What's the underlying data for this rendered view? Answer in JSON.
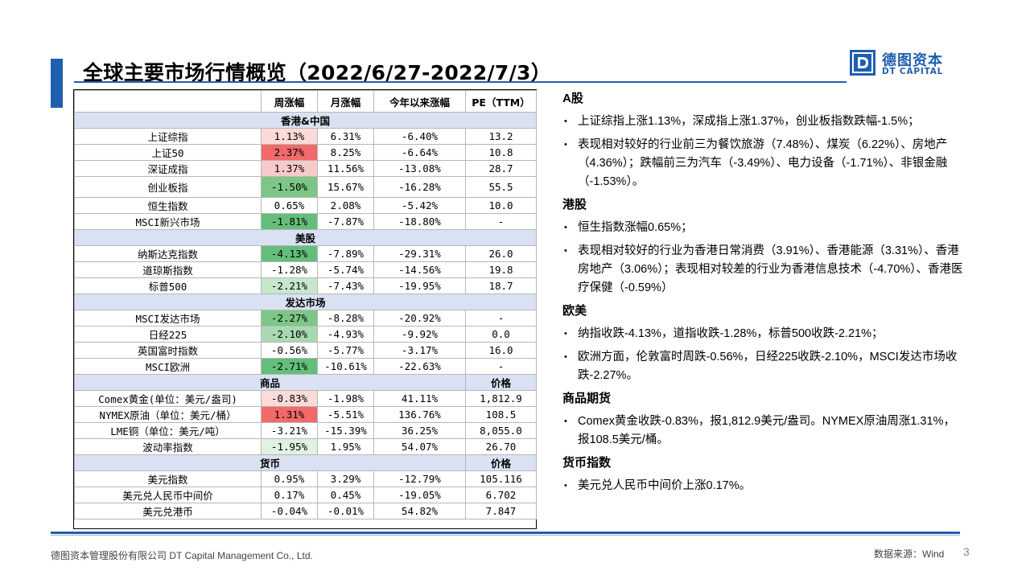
{
  "header": {
    "title": "全球主要市场行情概览（2022/6/27-2022/7/3）",
    "accent_color": "#1f5fae"
  },
  "logo": {
    "cn": "德图资本",
    "en": "DT CAPITAL",
    "mark": "D"
  },
  "table": {
    "columns": [
      "",
      "周涨幅",
      "月涨幅",
      "今年以来涨幅",
      "PE（TTM）"
    ],
    "sections": [
      {
        "type": "section",
        "title": "香港&中国"
      },
      {
        "type": "row",
        "name": "上证综指",
        "week": "1.13%",
        "month": "6.31%",
        "ytd": "-6.40%",
        "pe": "13.2",
        "week_color": "#fadbd8"
      },
      {
        "type": "row",
        "name": "上证50",
        "week": "2.37%",
        "month": "8.25%",
        "ytd": "-6.64%",
        "pe": "10.8",
        "week_color": "#f2696a"
      },
      {
        "type": "row",
        "name": "深证成指",
        "week": "1.37%",
        "month": "11.56%",
        "ytd": "-13.08%",
        "pe": "28.7",
        "week_color": "#f8c9c9"
      },
      {
        "type": "row",
        "name": "创业板指",
        "week": "-1.50%",
        "month": "15.67%",
        "ytd": "-16.28%",
        "pe": "55.5",
        "week_color": "#7cc786",
        "tall": true
      },
      {
        "type": "row",
        "name": "恒生指数",
        "week": "0.65%",
        "month": "2.08%",
        "ytd": "-5.42%",
        "pe": "10.0",
        "week_color": "#ffffff"
      },
      {
        "type": "row",
        "name": "MSCI新兴市场",
        "week": "-1.81%",
        "month": "-7.87%",
        "ytd": "-18.80%",
        "pe": "-",
        "week_color": "#63be7b"
      },
      {
        "type": "section",
        "title": "美股"
      },
      {
        "type": "row",
        "name": "纳斯达克指数",
        "week": "-4.13%",
        "month": "-7.89%",
        "ytd": "-29.31%",
        "pe": "26.0",
        "week_color": "#63be7b"
      },
      {
        "type": "row",
        "name": "道琼斯指数",
        "week": "-1.28%",
        "month": "-5.74%",
        "ytd": "-14.56%",
        "pe": "19.8",
        "week_color": "#ffffff"
      },
      {
        "type": "row",
        "name": "标普500",
        "week": "-2.21%",
        "month": "-7.43%",
        "ytd": "-19.95%",
        "pe": "18.7",
        "week_color": "#c6e7cc"
      },
      {
        "type": "section",
        "title": "发达市场"
      },
      {
        "type": "row",
        "name": "MSCI发达市场",
        "week": "-2.27%",
        "month": "-8.28%",
        "ytd": "-20.92%",
        "pe": "-",
        "week_color": "#7cc786"
      },
      {
        "type": "row",
        "name": "日经225",
        "week": "-2.10%",
        "month": "-4.93%",
        "ytd": "-9.92%",
        "pe": "0.0",
        "week_color": "#a8d9b0"
      },
      {
        "type": "row",
        "name": "英国富时指数",
        "week": "-0.56%",
        "month": "-5.77%",
        "ytd": "-3.17%",
        "pe": "16.0",
        "week_color": "#ffffff"
      },
      {
        "type": "row",
        "name": "MSCI欧洲",
        "week": "-2.71%",
        "month": "-10.61%",
        "ytd": "-22.63%",
        "pe": "-",
        "week_color": "#63be7b"
      },
      {
        "type": "section",
        "title": "商品",
        "right_label": "价格"
      },
      {
        "type": "row",
        "name": "Comex黄金(单位：美元/盎司)",
        "week": "-0.83%",
        "month": "-1.98%",
        "ytd": "41.11%",
        "pe": "1,812.9",
        "week_color": "#fadbd8"
      },
      {
        "type": "row",
        "name": "NYMEX原油（单位：美元/桶）",
        "week": "1.31%",
        "month": "-5.51%",
        "ytd": "136.76%",
        "pe": "108.5",
        "week_color": "#f2696a"
      },
      {
        "type": "row",
        "name": "LME铜（单位：美元/吨）",
        "week": "-3.21%",
        "month": "-15.39%",
        "ytd": "36.25%",
        "pe": "8,055.0",
        "week_color": "#ffffff"
      },
      {
        "type": "row",
        "name": "波动率指数",
        "week": "-1.95%",
        "month": "1.95%",
        "ytd": "54.07%",
        "pe": "26.70",
        "week_color": "#dff1e2"
      },
      {
        "type": "section",
        "title": "货币",
        "right_label": "价格"
      },
      {
        "type": "row",
        "name": "美元指数",
        "week": "0.95%",
        "month": "3.29%",
        "ytd": "-12.79%",
        "pe": "105.116",
        "week_color": "#ffffff"
      },
      {
        "type": "row",
        "name": "美元兑人民币中间价",
        "week": "0.17%",
        "month": "0.45%",
        "ytd": "-19.05%",
        "pe": "6.702",
        "week_color": "#ffffff"
      },
      {
        "type": "row",
        "name": "美元兑港币",
        "week": "-0.04%",
        "month": "-0.01%",
        "ytd": "54.82%",
        "pe": "7.847",
        "week_color": "#ffffff"
      }
    ]
  },
  "notes": [
    {
      "head": "A股",
      "bullets": [
        "上证综指上涨1.13%，深成指上涨1.37%，创业板指数跌幅-1.5%；",
        "表现相对较好的行业前三为餐饮旅游（7.48%）、煤炭（6.22%）、房地产（4.36%）；跌幅前三为汽车（-3.49%）、电力设备（-1.71%）、非银金融（-1.53%）。"
      ]
    },
    {
      "head": "港股",
      "bullets": [
        "恒生指数涨幅0.65%；",
        "表现相对较好的行业为香港日常消费（3.91%）、香港能源（3.31%）、香港房地产（3.06%）；表现相对较差的行业为香港信息技术（-4.70%）、香港医疗保健（-0.59%）"
      ]
    },
    {
      "head": "欧美",
      "bullets": [
        "纳指收跌-4.13%，道指收跌-1.28%，标普500收跌-2.21%；",
        "欧洲方面，伦敦富时周跌-0.56%，日经225收跌-2.10%，MSCI发达市场收跌-2.27%。"
      ]
    },
    {
      "head": "商品期货",
      "bullets": [
        "Comex黄金收跌-0.83%，报1,812.9美元/盎司。NYMEX原油周涨1.31%，报108.5美元/桶。"
      ]
    },
    {
      "head": "货币指数",
      "bullets": [
        "美元兑人民币中间价上涨0.17%。"
      ]
    }
  ],
  "footer": {
    "company": "德图资本管理股份有限公司  DT Capital Management  Co., Ltd.",
    "source": "数据来源：Wind",
    "page_number": "3"
  }
}
